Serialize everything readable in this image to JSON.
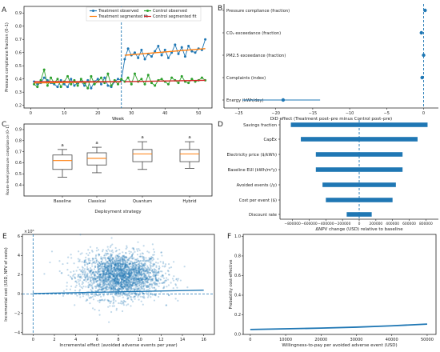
{
  "panels": [
    {
      "id": "A",
      "letter": "A"
    },
    {
      "id": "B",
      "letter": "B"
    },
    {
      "id": "C",
      "letter": "C"
    },
    {
      "id": "D",
      "letter": "D"
    },
    {
      "id": "E",
      "letter": "E"
    },
    {
      "id": "F",
      "letter": "F"
    }
  ],
  "chart_data": [
    {
      "panel": "A",
      "type": "line",
      "title": "",
      "xlabel": "Week",
      "ylabel": "Pressure compliance fraction (0–1)",
      "xlim": [
        -2,
        54
      ],
      "ylim": [
        0.18,
        0.95
      ],
      "xticks": [
        0,
        10,
        20,
        30,
        40,
        50
      ],
      "yticks": [
        0.2,
        0.3,
        0.4,
        0.5,
        0.6,
        0.7,
        0.8,
        0.9
      ],
      "intervention_week": 27,
      "legend_position": "top",
      "legend": [
        "Treatment observed",
        "Control observed",
        "Treatment segmented fit",
        "Control segmented fit"
      ],
      "colors": {
        "treatment": "#1f77b4",
        "control": "#2ca02c",
        "treatment_fit": "#ff7f0e",
        "control_fit": "#d62728"
      },
      "x": [
        1,
        2,
        3,
        4,
        5,
        6,
        7,
        8,
        9,
        10,
        11,
        12,
        13,
        14,
        15,
        16,
        17,
        18,
        19,
        20,
        21,
        22,
        23,
        24,
        25,
        26,
        27,
        28,
        29,
        30,
        31,
        32,
        33,
        34,
        35,
        36,
        37,
        38,
        39,
        40,
        41,
        42,
        43,
        44,
        45,
        46,
        47,
        48,
        49,
        50,
        51,
        52
      ],
      "series": [
        {
          "name": "Treatment observed",
          "values": [
            0.38,
            0.36,
            0.37,
            0.41,
            0.39,
            0.37,
            0.36,
            0.34,
            0.39,
            0.36,
            0.34,
            0.4,
            0.35,
            0.37,
            0.38,
            0.35,
            0.39,
            0.33,
            0.38,
            0.4,
            0.36,
            0.41,
            0.35,
            0.34,
            0.38,
            0.4,
            0.39,
            0.55,
            0.63,
            0.58,
            0.6,
            0.56,
            0.62,
            0.55,
            0.59,
            0.57,
            0.61,
            0.65,
            0.58,
            0.62,
            0.56,
            0.6,
            0.66,
            0.59,
            0.64,
            0.57,
            0.65,
            0.61,
            0.6,
            0.63,
            0.62,
            0.7
          ]
        },
        {
          "name": "Control observed",
          "values": [
            0.36,
            0.34,
            0.39,
            0.47,
            0.35,
            0.41,
            0.37,
            0.4,
            0.34,
            0.38,
            0.42,
            0.36,
            0.39,
            0.35,
            0.4,
            0.37,
            0.33,
            0.42,
            0.36,
            0.38,
            0.41,
            0.37,
            0.44,
            0.35,
            0.39,
            0.36,
            0.4,
            0.38,
            0.41,
            0.36,
            0.44,
            0.38,
            0.4,
            0.36,
            0.43,
            0.37,
            0.35,
            0.39,
            0.4,
            0.38,
            0.36,
            0.41,
            0.39,
            0.37,
            0.42,
            0.38,
            0.37,
            0.4,
            0.38,
            0.39,
            0.41,
            0.39
          ]
        },
        {
          "name": "Treatment segmented fit",
          "segments": [
            {
              "x": [
                1,
                27
              ],
              "y": [
                0.37,
                0.38
              ]
            },
            {
              "x": [
                28,
                52
              ],
              "y": [
                0.58,
                0.63
              ]
            }
          ]
        },
        {
          "name": "Control segmented fit",
          "segments": [
            {
              "x": [
                1,
                27
              ],
              "y": [
                0.38,
                0.38
              ]
            },
            {
              "x": [
                28,
                52
              ],
              "y": [
                0.38,
                0.39
              ]
            }
          ]
        }
      ]
    },
    {
      "panel": "B",
      "type": "scatter",
      "title": "",
      "xlabel": "DiD effect (Treatment post–pre minus Control post–pre)",
      "ylabel": "",
      "xlim": [
        -27,
        2
      ],
      "xticks": [
        -25,
        -20,
        -15,
        -10,
        -5,
        0
      ],
      "categories": [
        "Pressure compliance (fraction)",
        "CO₂ exceedance (fraction)",
        "PM2.5 exceedance (fraction)",
        "Complaints (index)",
        "Energy (kWh/day)"
      ],
      "values": [
        0.2,
        -0.3,
        0.0,
        -0.2,
        -19.0
      ],
      "ci_low": [
        0.1,
        -0.4,
        -0.1,
        -0.3,
        -24.5
      ],
      "ci_high": [
        0.3,
        -0.2,
        0.1,
        -0.1,
        -14.0
      ],
      "reference_line": 0,
      "color": "#1f77b4"
    },
    {
      "panel": "C",
      "type": "box",
      "title": "",
      "xlabel": "Deployment strategy",
      "ylabel": "Room-level pressure compliance (0–1)",
      "ylim": [
        0.3,
        0.95
      ],
      "yticks": [
        0.4,
        0.5,
        0.6,
        0.7,
        0.8,
        0.9
      ],
      "categories": [
        "Baseline",
        "Classical",
        "Quantum",
        "Hybrid"
      ],
      "boxes": [
        {
          "whisker_low": 0.47,
          "q1": 0.54,
          "median": 0.62,
          "q3": 0.67,
          "whisker_high": 0.72
        },
        {
          "whisker_low": 0.51,
          "q1": 0.58,
          "median": 0.64,
          "q3": 0.69,
          "whisker_high": 0.74
        },
        {
          "whisker_low": 0.54,
          "q1": 0.61,
          "median": 0.68,
          "q3": 0.72,
          "whisker_high": 0.79
        },
        {
          "whisker_low": 0.55,
          "q1": 0.61,
          "median": 0.68,
          "q3": 0.72,
          "whisker_high": 0.79
        }
      ],
      "group_letters": [
        "a",
        "a",
        "a",
        "a"
      ],
      "median_color": "#ff7f0e"
    },
    {
      "panel": "D",
      "type": "bar",
      "orientation": "horizontal",
      "title": "",
      "xlabel": "ΔNPV change (USD) relative to baseline",
      "ylabel": "",
      "xlim": [
        -950000,
        950000
      ],
      "xticks": [
        -800000,
        -600000,
        -400000,
        -200000,
        0,
        200000,
        400000,
        600000,
        800000
      ],
      "categories": [
        "Savings fraction",
        "CapEx",
        "Electricity price ($/kWh)",
        "Baseline EUI (kWh/m²y)",
        "Avoided events (/y)",
        "Cost per event ($)",
        "Discount rate"
      ],
      "low": [
        -820000,
        -700000,
        -520000,
        -520000,
        -440000,
        -400000,
        -150000
      ],
      "high": [
        820000,
        700000,
        520000,
        520000,
        440000,
        400000,
        150000
      ],
      "reference_line": 0,
      "color": "#1f77b4"
    },
    {
      "panel": "E",
      "type": "scatter",
      "title": "",
      "xlabel": "Incremental effect (avoided adverse events per year)",
      "ylabel": "Incremental cost (USD, NPV of costs)",
      "axis_multiplier": "×10⁶",
      "xlim": [
        -1,
        17
      ],
      "ylim": [
        -4.2,
        6.2
      ],
      "xticks": [
        0,
        2,
        4,
        6,
        8,
        10,
        12,
        14,
        16
      ],
      "yticks": [
        -4,
        -2,
        0,
        2,
        4,
        6
      ],
      "n_points": 2500,
      "point_center": [
        8.2,
        1.9
      ],
      "point_spread_sd": [
        1.9,
        1.2
      ],
      "trend_line": {
        "x": [
          0,
          16
        ],
        "y": [
          0.05,
          0.4
        ]
      },
      "reference_lines": {
        "x": 0,
        "y": 0
      },
      "color": "#1f77b4"
    },
    {
      "panel": "F",
      "type": "line",
      "title": "",
      "xlabel": "Willingness-to-pay per avoided adverse event (USD)",
      "ylabel": "Probability cost-effective",
      "xlim": [
        -2000,
        52500
      ],
      "ylim": [
        0,
        1.02
      ],
      "xticks": [
        0,
        10000,
        20000,
        30000,
        40000,
        50000
      ],
      "yticks": [
        0.0,
        0.2,
        0.4,
        0.6,
        0.8,
        1.0
      ],
      "x": [
        0,
        10000,
        20000,
        30000,
        40000,
        50000
      ],
      "values": [
        0.05,
        0.057,
        0.064,
        0.074,
        0.088,
        0.105
      ],
      "color": "#1f77b4"
    }
  ]
}
